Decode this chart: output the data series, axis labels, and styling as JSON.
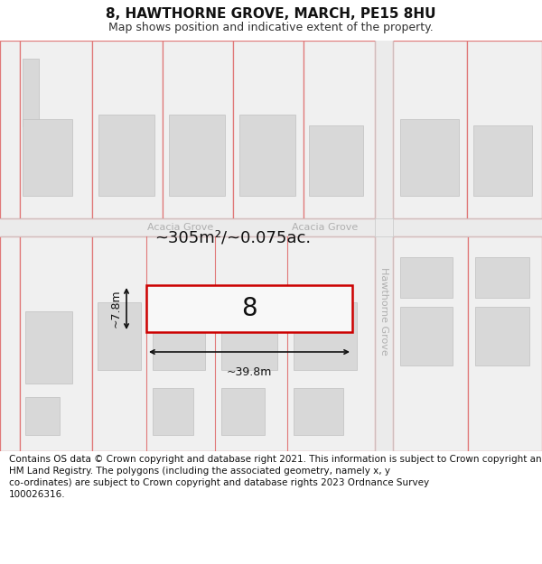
{
  "title": "8, HAWTHORNE GROVE, MARCH, PE15 8HU",
  "subtitle": "Map shows position and indicative extent of the property.",
  "footer": "Contains OS data © Crown copyright and database right 2021. This information is subject to Crown copyright and database rights 2023 and is reproduced with the permission of\nHM Land Registry. The polygons (including the associated geometry, namely x, y\nco-ordinates) are subject to Crown copyright and database rights 2023 Ordnance Survey\n100026316.",
  "bg": "#ffffff",
  "lot_face": "#f0f0f0",
  "lot_edge": "#e07878",
  "bld_face": "#d8d8d8",
  "bld_edge": "#c0c0c0",
  "highlight": "#cc0000",
  "road_face": "#ebebeb",
  "road_edge": "#cccccc",
  "street_col": "#b0b0b0",
  "dim_col": "#111111",
  "area_label": "~305m²/~0.075ac.",
  "width_label": "~39.8m",
  "height_label": "~7.8m",
  "prop_num": "8",
  "road1": "Acacia Grove",
  "road2": "Hawthorne Grove",
  "title_fontsize": 11,
  "subtitle_fontsize": 9,
  "footer_fontsize": 7.5,
  "area_fontsize": 13,
  "propnum_fontsize": 20,
  "dim_fontsize": 9,
  "street_fontsize": 8
}
